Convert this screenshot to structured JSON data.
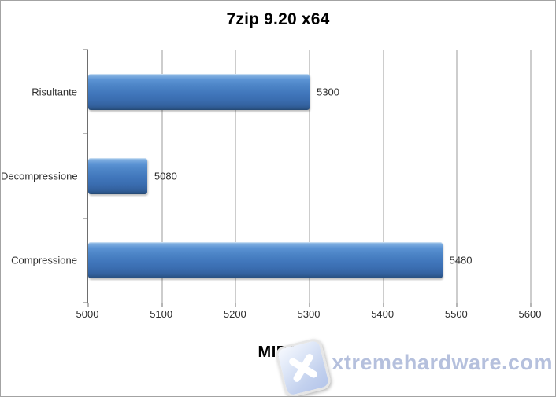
{
  "chart_data": {
    "type": "bar",
    "orientation": "horizontal",
    "title": "7zip 9.20 x64",
    "xlabel": "MIPS",
    "ylabel": "",
    "categories": [
      "Risultante",
      "Decompressione",
      "Compressione"
    ],
    "values": [
      5300,
      5080,
      5480
    ],
    "data_labels": [
      "5300",
      "5080",
      "5480"
    ],
    "xlim": [
      5000,
      5600
    ],
    "x_ticks": [
      5000,
      5100,
      5200,
      5300,
      5400,
      5500,
      5600
    ],
    "grid": true,
    "legend": false,
    "bar_color": "#4076bb",
    "gridline_color": "#9b9b9b",
    "axis_color": "#6e6e6e"
  },
  "watermark": {
    "text": "xtremehardware.com",
    "logo": "x-tile-icon"
  }
}
